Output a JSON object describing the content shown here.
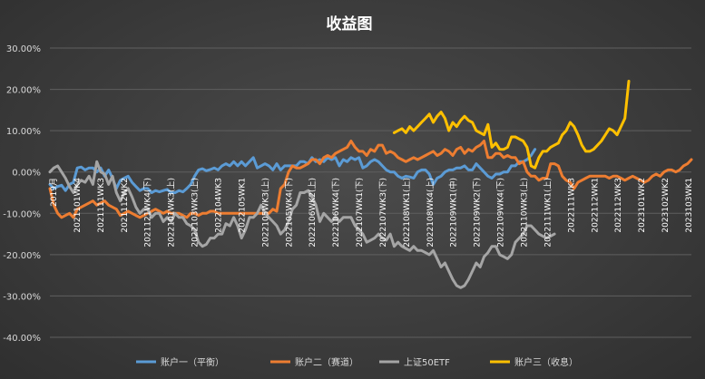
{
  "chart_data": {
    "type": "line",
    "title": "收益图",
    "yticks": [
      "30.00%",
      "20.00%",
      "10.00%",
      "0.00%",
      "-10.00%",
      "-20.00%",
      "-30.00%",
      "-40.00%"
    ],
    "ylim": [
      -40,
      30
    ],
    "grid": true,
    "legend_position": "bottom",
    "x_tick_labels": [
      "2019月",
      "2021101WK4",
      "2021111WK3",
      "2021112WK2",
      "2021121WK4(下)",
      "2022101WK3(上)",
      "2022103WK3(上)",
      "2022104WK3",
      "2022105WK1",
      "2022105WK3(上)",
      "2022105WK4(下)",
      "2022106WK2(上)",
      "2022106WK4(下)",
      "2022107WK1(下)",
      "2022107WK3(下)",
      "2022108WK1(上)",
      "2022108WK4(上)",
      "2022109WK1(中)",
      "2022109WK2(下)",
      "2022109WK4(下)",
      "2022110WK3(上)",
      "2022111WK1(上)",
      "2022111WK3",
      "2022112WK1",
      "2022112WK3",
      "2023101WK2",
      "2023102WK2",
      "2023103WK1"
    ],
    "series": [
      {
        "name": "账户一（平衡）",
        "color": "#5b9bd5",
        "start_index": 0,
        "values": [
          -3,
          -4,
          -3.5,
          -3.2,
          -4.5,
          -3,
          -2.5,
          1,
          1.2,
          0.5,
          1,
          1,
          0,
          1,
          -1,
          0.5,
          -1.5,
          -4,
          -2,
          -1.5,
          -1,
          -2.5,
          -3.5,
          -4.5,
          -4,
          -4,
          -5,
          -4.5,
          -4.8,
          -4.5,
          -4.2,
          -5,
          -5,
          -4.5,
          -4.8,
          -4,
          -3,
          -1,
          0.5,
          0.8,
          0.3,
          0.6,
          1,
          0.5,
          1.5,
          2,
          1.5,
          2.5,
          1.5,
          2.5,
          1.5,
          2.5,
          3.5,
          1,
          1.5,
          2,
          1.5,
          0.5,
          2,
          0.5,
          1.5,
          1.5,
          1.5,
          1.5,
          2.5,
          2.5,
          2,
          3.5,
          2.5,
          3,
          2.5,
          3.5,
          3,
          3.5,
          1.5,
          3,
          2.5,
          3.5,
          3,
          3.5,
          1,
          1.5,
          2.5,
          3,
          2.5,
          1.5,
          0.5,
          0,
          0,
          -1,
          -1.5,
          -1,
          -1.2,
          -1.5,
          0,
          0.5,
          0.5,
          -0.5,
          -3,
          -1.5,
          -1,
          0,
          0.5,
          0.5,
          1,
          1,
          1.5,
          0.5,
          0.5,
          2,
          1,
          0,
          -1,
          -1.5,
          -0.5,
          -0.5,
          0,
          0,
          1.5,
          1.5,
          2.5,
          2.5,
          3,
          4,
          5.5
        ]
      },
      {
        "name": "账户二（赛道）",
        "color": "#ed7d31",
        "start_index": 0,
        "values": [
          -4,
          -8,
          -10,
          -11,
          -10.5,
          -10,
          -11,
          -9,
          -8.5,
          -8,
          -7.5,
          -7,
          -8,
          -7.5,
          -7,
          -8,
          -8.5,
          -9,
          -10.5,
          -10,
          -9.5,
          -10,
          -10.5,
          -11,
          -10.5,
          -10,
          -9.5,
          -9,
          -9.5,
          -10,
          -9.5,
          -10,
          -10,
          -10,
          -10.5,
          -11,
          -10,
          -10,
          -10.5,
          -10,
          -10,
          -9.5,
          -9.5,
          -10,
          -10,
          -10,
          -10,
          -10,
          -10,
          -10,
          -10,
          -10,
          -10,
          -10,
          -10,
          -10,
          -10,
          -9,
          -9.5,
          -4,
          -3,
          0,
          1.5,
          1,
          1,
          1.5,
          2,
          3,
          3,
          2,
          3.5,
          4,
          3.5,
          4.5,
          5,
          5.5,
          6,
          7.5,
          6,
          5,
          5,
          4,
          5.5,
          5,
          6.5,
          6.5,
          4.5,
          5,
          4.5,
          3.5,
          3,
          2.5,
          3,
          3.5,
          3,
          3.5,
          4,
          4.5,
          5,
          4,
          4.5,
          5.5,
          5,
          4,
          5.5,
          6,
          4.5,
          5.5,
          5,
          6,
          6.5,
          7.5,
          3.5,
          3.5,
          4.5,
          4.5,
          3.5,
          4,
          3.5,
          3.5,
          2,
          2.5,
          0,
          -1,
          -1,
          -2,
          -1.5,
          -1.5,
          2,
          2,
          1.5,
          -1,
          -2,
          -2.5,
          -4,
          -2.5,
          -2,
          -1.5,
          -1,
          -1,
          -1,
          -1,
          -1,
          -1.5,
          -1,
          -1,
          -1.5,
          -2,
          -1.5,
          -1,
          -1.5,
          -2,
          -2.5,
          -2,
          -1,
          -0.5,
          -1,
          0,
          0.5,
          0.5,
          0,
          0.5,
          1.5,
          2,
          3
        ]
      },
      {
        "name": "上证50ETF",
        "color": "#a5a5a5",
        "start_index": 0,
        "values": [
          0,
          1,
          1.5,
          0,
          -1.5,
          -3.5,
          -5,
          -3,
          -2,
          -2.5,
          -1,
          -3,
          2.5,
          0,
          -0.5,
          -3,
          -1,
          -5,
          -7,
          -5,
          -4,
          -6,
          -8.5,
          -10,
          -9,
          -9,
          -11,
          -10,
          -10,
          -12,
          -11,
          -12,
          -10,
          -11,
          -11,
          -12.5,
          -13,
          -14,
          -17,
          -18,
          -17.5,
          -16,
          -16,
          -15,
          -15,
          -12.5,
          -13,
          -11,
          -13,
          -16,
          -14,
          -11,
          -11,
          -10,
          -8,
          -10,
          -11,
          -12,
          -13,
          -15,
          -14,
          -12,
          -9,
          -8,
          -5,
          -5,
          -4.5,
          -6,
          -8,
          -12,
          -10,
          -11,
          -12,
          -11,
          -12,
          -11,
          -11,
          -11,
          -13,
          -14,
          -15,
          -17,
          -16.5,
          -16,
          -15,
          -16,
          -16.5,
          -15,
          -18,
          -17,
          -18,
          -18.5,
          -19,
          -18,
          -19,
          -19,
          -19.5,
          -20,
          -19,
          -21,
          -23,
          -22,
          -24,
          -26,
          -27.5,
          -28,
          -27.5,
          -26,
          -24,
          -22,
          -23,
          -20.5,
          -19.5,
          -18,
          -18,
          -20,
          -20.5,
          -21,
          -20,
          -17,
          -16,
          -15,
          -13,
          -13,
          -14,
          -15,
          -15.5,
          -16,
          -15.5,
          -15
        ]
      },
      {
        "name": "账户三（收息）",
        "color": "#ffc000",
        "start_index": 88,
        "values": [
          9.5,
          10,
          10.5,
          9.5,
          11,
          10,
          11,
          12,
          13,
          14,
          12,
          13.5,
          14.5,
          13,
          10,
          12,
          11,
          12.5,
          13.5,
          12.5,
          12,
          10,
          9.5,
          9,
          11.5,
          6,
          7,
          5.5,
          5.5,
          6,
          8.5,
          8.5,
          8,
          7.5,
          6,
          1.5,
          1,
          3.5,
          5,
          5,
          6,
          6.5,
          7,
          9,
          10,
          12,
          11,
          9,
          6.5,
          5,
          5,
          5.5,
          6.5,
          7.5,
          9,
          10.5,
          10,
          9,
          11,
          13,
          22
        ]
      }
    ]
  }
}
